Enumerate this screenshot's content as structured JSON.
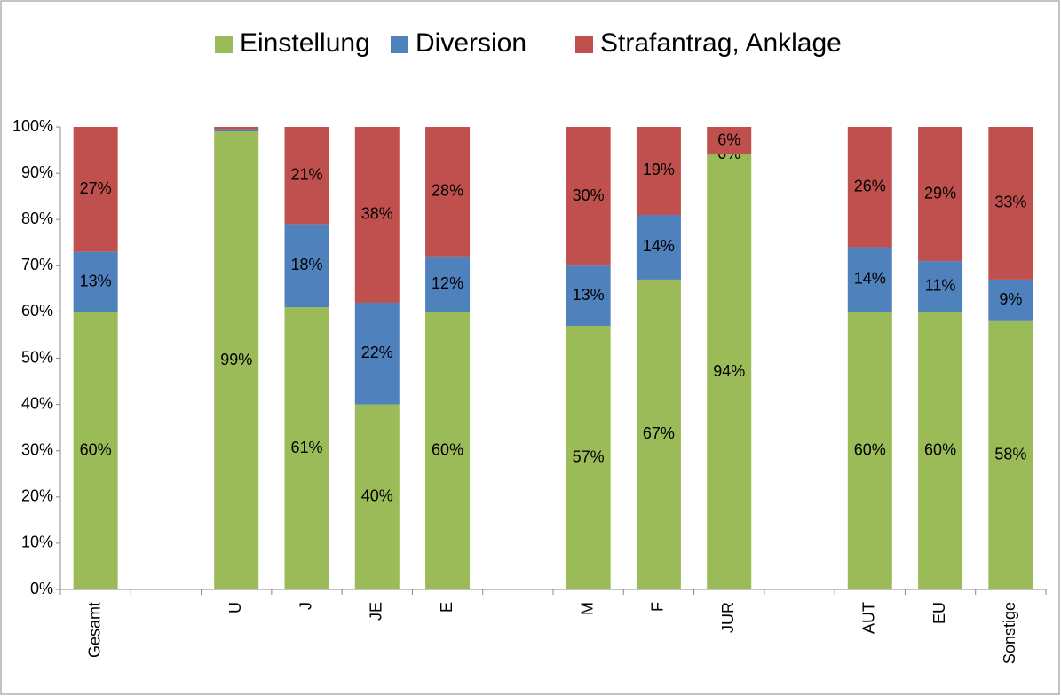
{
  "chart_data": {
    "type": "stacked_bar",
    "categories": [
      "Gesamt",
      null,
      "U",
      "J",
      "JE",
      "E",
      null,
      "M",
      "F",
      "JUR",
      null,
      "AUT",
      "EU",
      "Sonstige"
    ],
    "series": [
      {
        "name": "Einstellung",
        "color": "#9bbb59",
        "values": [
          60,
          null,
          99,
          61,
          40,
          60,
          null,
          57,
          67,
          94,
          null,
          60,
          60,
          58
        ],
        "value_labels": [
          "60%",
          null,
          "99%",
          "61%",
          "40%",
          "60%",
          null,
          "57%",
          "67%",
          "94%",
          null,
          "60%",
          "60%",
          "58%"
        ]
      },
      {
        "name": "Diversion",
        "color": "#4f81bd",
        "values": [
          13,
          null,
          0.5,
          18,
          22,
          12,
          null,
          13,
          14,
          0,
          null,
          14,
          11,
          9
        ],
        "value_labels": [
          "13%",
          null,
          null,
          "18%",
          "22%",
          "12%",
          null,
          "13%",
          "14%",
          "0%",
          null,
          "14%",
          "11%",
          "9%"
        ]
      },
      {
        "name": "Strafantrag, Anklage",
        "color": "#c0504d",
        "values": [
          27,
          null,
          0.5,
          21,
          38,
          28,
          null,
          30,
          19,
          6,
          null,
          26,
          29,
          33
        ],
        "value_labels": [
          "27%",
          null,
          null,
          "21%",
          "38%",
          "28%",
          null,
          "30%",
          "19%",
          "6%",
          null,
          "26%",
          "29%",
          "33%"
        ]
      }
    ],
    "ylim": [
      0,
      100
    ],
    "yticks": [
      {
        "value": 0,
        "label": "0%"
      },
      {
        "value": 10,
        "label": "10%"
      },
      {
        "value": 20,
        "label": "20%"
      },
      {
        "value": 30,
        "label": "30%"
      },
      {
        "value": 40,
        "label": "40%"
      },
      {
        "value": 50,
        "label": "50%"
      },
      {
        "value": 60,
        "label": "60%"
      },
      {
        "value": 70,
        "label": "70%"
      },
      {
        "value": 80,
        "label": "80%"
      },
      {
        "value": 90,
        "label": "90%"
      },
      {
        "value": 100,
        "label": "100%"
      }
    ],
    "legend": "top",
    "grid": false
  }
}
